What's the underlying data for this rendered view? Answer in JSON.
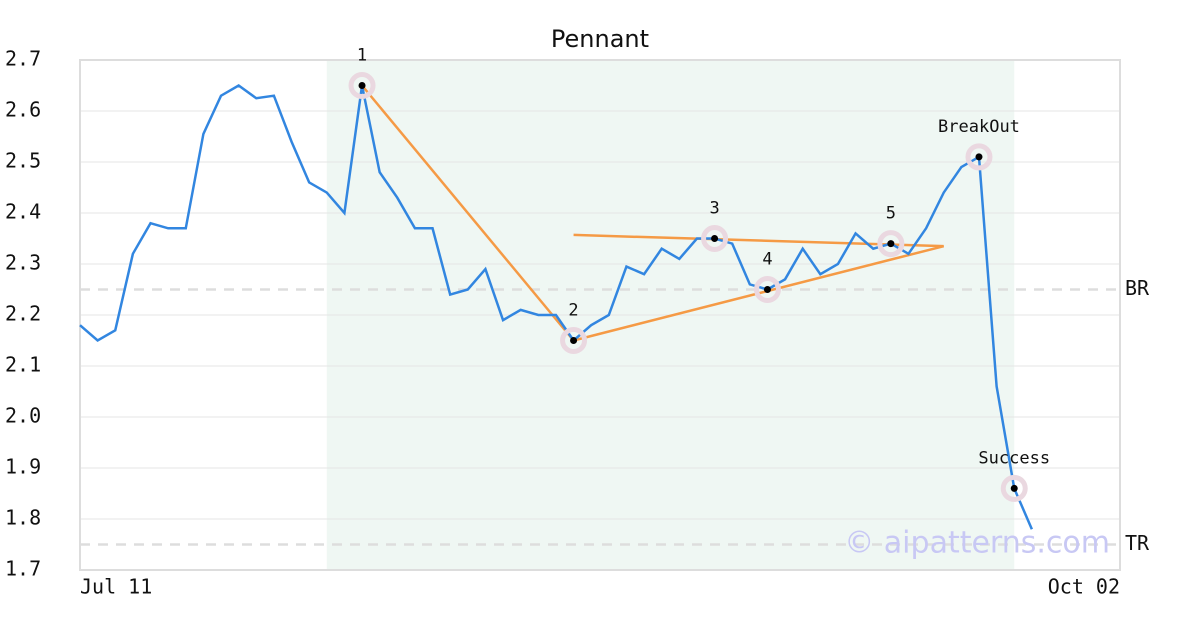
{
  "chart_data": {
    "type": "line",
    "title": "Pennant",
    "xlim": [
      0,
      59
    ],
    "xticks": [
      {
        "value": 0,
        "label": "Jul 11"
      },
      {
        "value": 59,
        "label": "Oct 02"
      }
    ],
    "ylim": [
      1.7,
      2.7
    ],
    "yticks": [
      1.7,
      1.8,
      1.9,
      {
        "value": 2,
        "label": "2.0"
      },
      2.1,
      2.2,
      2.3,
      2.4,
      2.5,
      2.6,
      2.7
    ],
    "grid": true,
    "color": "#3286e0",
    "values": [
      2.18,
      2.15,
      2.17,
      2.32,
      2.38,
      2.37,
      2.37,
      2.555,
      2.63,
      2.65,
      2.625,
      2.63,
      2.54,
      2.46,
      2.44,
      2.4,
      2.65,
      2.48,
      2.43,
      2.37,
      2.37,
      2.24,
      2.25,
      2.29,
      2.19,
      2.21,
      2.2,
      2.2,
      2.15,
      2.18,
      2.2,
      2.295,
      2.28,
      2.33,
      2.31,
      2.35,
      2.35,
      2.34,
      2.26,
      2.25,
      2.27,
      2.33,
      2.28,
      2.3,
      2.36,
      2.33,
      2.34,
      2.32,
      2.37,
      2.44,
      2.49,
      2.51,
      2.06,
      1.86,
      1.78
    ],
    "shaded_range": [
      14,
      53
    ],
    "trend_color": "#f59a45",
    "trend_lines": [
      {
        "x": [
          16,
          28
        ],
        "y": [
          2.65,
          2.15
        ]
      },
      {
        "x": [
          28,
          49
        ],
        "y": [
          2.15,
          2.335
        ]
      },
      {
        "x": [
          28,
          49
        ],
        "y": [
          2.357,
          2.335
        ]
      }
    ],
    "points": [
      {
        "label": "1",
        "x": 16,
        "y": 2.65
      },
      {
        "label": "2",
        "x": 28,
        "y": 2.15
      },
      {
        "label": "3",
        "x": 36,
        "y": 2.35
      },
      {
        "label": "4",
        "x": 39,
        "y": 2.25
      },
      {
        "label": "5",
        "x": 46,
        "y": 2.34
      },
      {
        "label": "BreakOut",
        "x": 51,
        "y": 2.51
      },
      {
        "label": "Success",
        "x": 53,
        "y": 1.86
      }
    ],
    "levels": [
      {
        "label": "BR",
        "value": 2.25
      },
      {
        "label": "TR",
        "value": 1.75
      }
    ],
    "watermark": "© aipatterns.com"
  }
}
